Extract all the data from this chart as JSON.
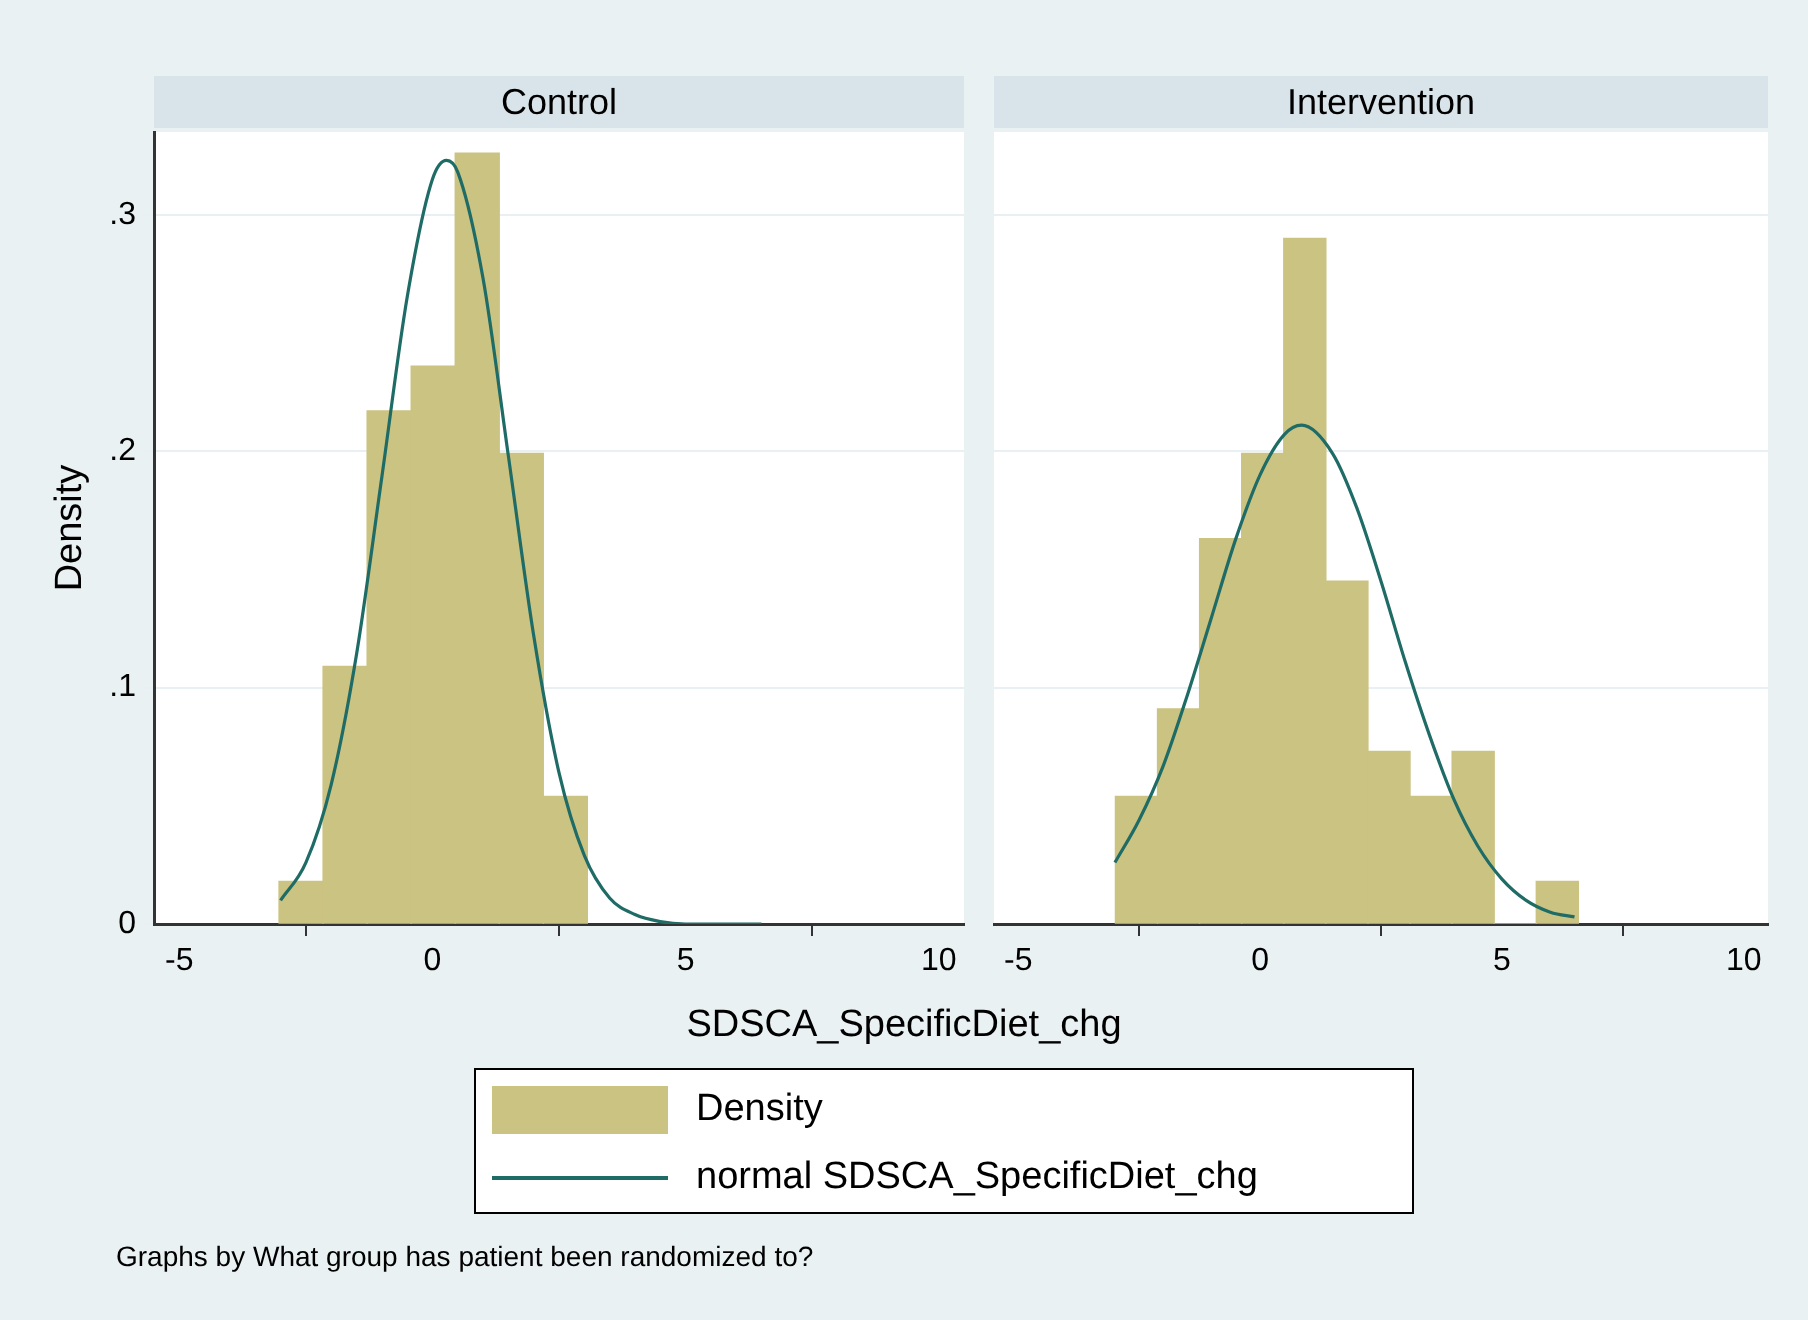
{
  "chart_data": [
    {
      "type": "histogram",
      "title": "Control",
      "xlabel": "SDSCA_SpecificDiet_chg",
      "ylabel": "Density",
      "xlim": [
        -5.5,
        10.5
      ],
      "xticks": [
        -5,
        0,
        5,
        10
      ],
      "ylim": [
        0,
        0.335
      ],
      "yticks": [
        0,
        {
          "value": 0.1,
          "label": ".1"
        },
        {
          "value": 0.2,
          "label": ".2"
        },
        {
          "value": 0.3,
          "label": ".3"
        }
      ],
      "grid": "y",
      "legend": "bottom",
      "annotations": [
        "Graphs by What group has patient been randomized to?"
      ],
      "series": [
        {
          "name": "Density",
          "color": "#cbc382",
          "bins": [
            -3.03,
            -2.16,
            -1.29,
            -0.42,
            0.45,
            1.32,
            2.19,
            3.06
          ],
          "values": [
            0.018,
            0.109,
            0.217,
            0.236,
            0.326,
            0.199,
            0.054
          ]
        },
        {
          "type": "line",
          "name": "normal SDSCA_SpecificDiet_chg",
          "color": "#1f6b66",
          "x": [
            -3,
            -2.5,
            -2,
            -1.5,
            -1,
            -0.5,
            0,
            0.28,
            0.5,
            1,
            1.5,
            2,
            2.5,
            3,
            3.5,
            4,
            4.5,
            5,
            5.5,
            6,
            6.5
          ],
          "values": [
            0.01,
            0.026,
            0.059,
            0.114,
            0.189,
            0.265,
            0.315,
            0.323,
            0.318,
            0.273,
            0.198,
            0.122,
            0.064,
            0.029,
            0.011,
            0.004,
            0.001,
            0,
            0,
            0,
            0
          ]
        }
      ]
    },
    {
      "type": "histogram",
      "title": "Intervention",
      "xlim": [
        -5.5,
        10.5
      ],
      "xticks": [
        -5,
        0,
        5,
        10
      ],
      "ylim": [
        0,
        0.335
      ],
      "yticks": [
        0,
        0.1,
        0.2,
        0.3
      ],
      "grid": "y",
      "tick_labels": "x",
      "series": [
        {
          "color": "#cbc382",
          "bins": [
            -2.99,
            -2.12,
            -1.25,
            -0.38,
            0.49,
            1.36,
            2.23,
            3.1,
            3.97,
            4.84,
            5.71,
            6.58
          ],
          "values": [
            0.054,
            0.091,
            0.163,
            0.199,
            0.29,
            0.145,
            0.073,
            0.054,
            0.073,
            0,
            0.018
          ]
        },
        {
          "type": "line",
          "color": "#1f6b66",
          "x": [
            -3,
            -2.5,
            -2,
            -1.5,
            -1,
            -0.5,
            0,
            0.5,
            0.86,
            1.5,
            2,
            2.5,
            3,
            3.5,
            4,
            4.5,
            5,
            5.5,
            6,
            6.5
          ],
          "values": [
            0.026,
            0.044,
            0.067,
            0.097,
            0.13,
            0.163,
            0.19,
            0.207,
            0.211,
            0.199,
            0.176,
            0.145,
            0.111,
            0.08,
            0.053,
            0.033,
            0.019,
            0.01,
            0.005,
            0.003
          ]
        }
      ]
    }
  ]
}
